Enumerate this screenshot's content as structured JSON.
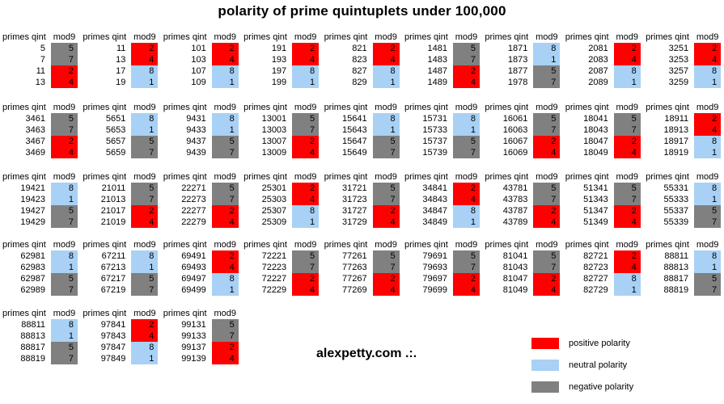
{
  "title": "polarity of prime quintuplets under 100,000",
  "watermark": "alexpetty.com .:.",
  "table_header": {
    "primes": "primes qint",
    "mod": "mod9"
  },
  "colors": {
    "positive": "#ff0000",
    "neutral": "#a8d1f5",
    "negative": "#808080"
  },
  "polarity_of_mod": {
    "1": "neutral",
    "2": "positive",
    "4": "positive",
    "5": "negative",
    "7": "negative",
    "8": "neutral"
  },
  "legend": [
    {
      "label": "positive polarity",
      "polarity": "positive"
    },
    {
      "label": "neutral polarity",
      "polarity": "neutral"
    },
    {
      "label": "negative polarity",
      "polarity": "negative"
    }
  ],
  "chart_data": {
    "type": "table",
    "title": "polarity of prime quintuplets under 100,000",
    "columns": [
      "primes qint",
      "mod9"
    ],
    "rows": [
      [
        {
          "primes": [
            5,
            7,
            11,
            13
          ],
          "mod9": [
            5,
            7,
            2,
            4
          ]
        },
        {
          "primes": [
            11,
            13,
            17,
            19
          ],
          "mod9": [
            2,
            4,
            8,
            1
          ]
        },
        {
          "primes": [
            101,
            103,
            107,
            109
          ],
          "mod9": [
            2,
            4,
            8,
            1
          ]
        },
        {
          "primes": [
            191,
            193,
            197,
            199
          ],
          "mod9": [
            2,
            4,
            8,
            1
          ]
        },
        {
          "primes": [
            821,
            823,
            827,
            829
          ],
          "mod9": [
            2,
            4,
            8,
            1
          ]
        },
        {
          "primes": [
            1481,
            1483,
            1487,
            1489
          ],
          "mod9": [
            5,
            7,
            2,
            4
          ]
        },
        {
          "primes": [
            1871,
            1873,
            1877,
            1978
          ],
          "mod9": [
            8,
            1,
            5,
            7
          ]
        },
        {
          "primes": [
            2081,
            2083,
            2087,
            2089
          ],
          "mod9": [
            2,
            4,
            8,
            1
          ]
        },
        {
          "primes": [
            3251,
            3253,
            3257,
            3259
          ],
          "mod9": [
            2,
            4,
            8,
            1
          ]
        }
      ],
      [
        {
          "primes": [
            3461,
            3463,
            3467,
            3469
          ],
          "mod9": [
            5,
            7,
            2,
            4
          ]
        },
        {
          "primes": [
            5651,
            5653,
            5657,
            5659
          ],
          "mod9": [
            8,
            1,
            5,
            7
          ]
        },
        {
          "primes": [
            9431,
            9433,
            9437,
            9439
          ],
          "mod9": [
            8,
            1,
            5,
            7
          ]
        },
        {
          "primes": [
            13001,
            13003,
            13007,
            13009
          ],
          "mod9": [
            5,
            7,
            2,
            4
          ]
        },
        {
          "primes": [
            15641,
            15643,
            15647,
            15649
          ],
          "mod9": [
            8,
            1,
            5,
            7
          ]
        },
        {
          "primes": [
            15731,
            15733,
            15737,
            15739
          ],
          "mod9": [
            8,
            1,
            5,
            7
          ]
        },
        {
          "primes": [
            16061,
            16063,
            16067,
            16069
          ],
          "mod9": [
            5,
            7,
            2,
            4
          ]
        },
        {
          "primes": [
            18041,
            18043,
            18047,
            18049
          ],
          "mod9": [
            5,
            7,
            2,
            4
          ]
        },
        {
          "primes": [
            18911,
            18913,
            18917,
            18919
          ],
          "mod9": [
            2,
            4,
            8,
            1
          ]
        }
      ],
      [
        {
          "primes": [
            19421,
            19423,
            19427,
            19429
          ],
          "mod9": [
            8,
            1,
            5,
            7
          ]
        },
        {
          "primes": [
            21011,
            21013,
            21017,
            21019
          ],
          "mod9": [
            5,
            7,
            2,
            4
          ]
        },
        {
          "primes": [
            22271,
            22273,
            22277,
            22279
          ],
          "mod9": [
            5,
            7,
            2,
            4
          ]
        },
        {
          "primes": [
            25301,
            25303,
            25307,
            25309
          ],
          "mod9": [
            2,
            4,
            8,
            1
          ]
        },
        {
          "primes": [
            31721,
            31723,
            31727,
            31729
          ],
          "mod9": [
            5,
            7,
            2,
            4
          ]
        },
        {
          "primes": [
            34841,
            34843,
            34847,
            34849
          ],
          "mod9": [
            2,
            4,
            8,
            1
          ]
        },
        {
          "primes": [
            43781,
            43783,
            43787,
            43789
          ],
          "mod9": [
            5,
            7,
            2,
            4
          ]
        },
        {
          "primes": [
            51341,
            51343,
            51347,
            51349
          ],
          "mod9": [
            5,
            7,
            2,
            4
          ]
        },
        {
          "primes": [
            55331,
            55333,
            55337,
            55339
          ],
          "mod9": [
            8,
            1,
            5,
            7
          ]
        }
      ],
      [
        {
          "primes": [
            62981,
            62983,
            62987,
            62989
          ],
          "mod9": [
            8,
            1,
            5,
            7
          ]
        },
        {
          "primes": [
            67211,
            67213,
            67217,
            67219
          ],
          "mod9": [
            8,
            1,
            5,
            7
          ]
        },
        {
          "primes": [
            69491,
            69493,
            69497,
            69499
          ],
          "mod9": [
            2,
            4,
            8,
            1
          ]
        },
        {
          "primes": [
            72221,
            72223,
            72227,
            72229
          ],
          "mod9": [
            5,
            7,
            2,
            4
          ]
        },
        {
          "primes": [
            77261,
            77263,
            77267,
            77269
          ],
          "mod9": [
            5,
            7,
            2,
            4
          ]
        },
        {
          "primes": [
            79691,
            79693,
            79697,
            79699
          ],
          "mod9": [
            5,
            7,
            2,
            4
          ]
        },
        {
          "primes": [
            81041,
            81043,
            81047,
            81049
          ],
          "mod9": [
            5,
            7,
            2,
            4
          ]
        },
        {
          "primes": [
            82721,
            82723,
            82727,
            82729
          ],
          "mod9": [
            2,
            4,
            8,
            1
          ]
        },
        {
          "primes": [
            88811,
            88813,
            88817,
            88819
          ],
          "mod9": [
            8,
            1,
            5,
            7
          ]
        }
      ],
      [
        {
          "primes": [
            88811,
            88813,
            88817,
            88819
          ],
          "mod9": [
            8,
            1,
            5,
            7
          ]
        },
        {
          "primes": [
            97841,
            97843,
            97847,
            97849
          ],
          "mod9": [
            2,
            4,
            8,
            1
          ]
        },
        {
          "primes": [
            99131,
            99133,
            99137,
            99139
          ],
          "mod9": [
            5,
            7,
            2,
            4
          ]
        }
      ]
    ]
  }
}
